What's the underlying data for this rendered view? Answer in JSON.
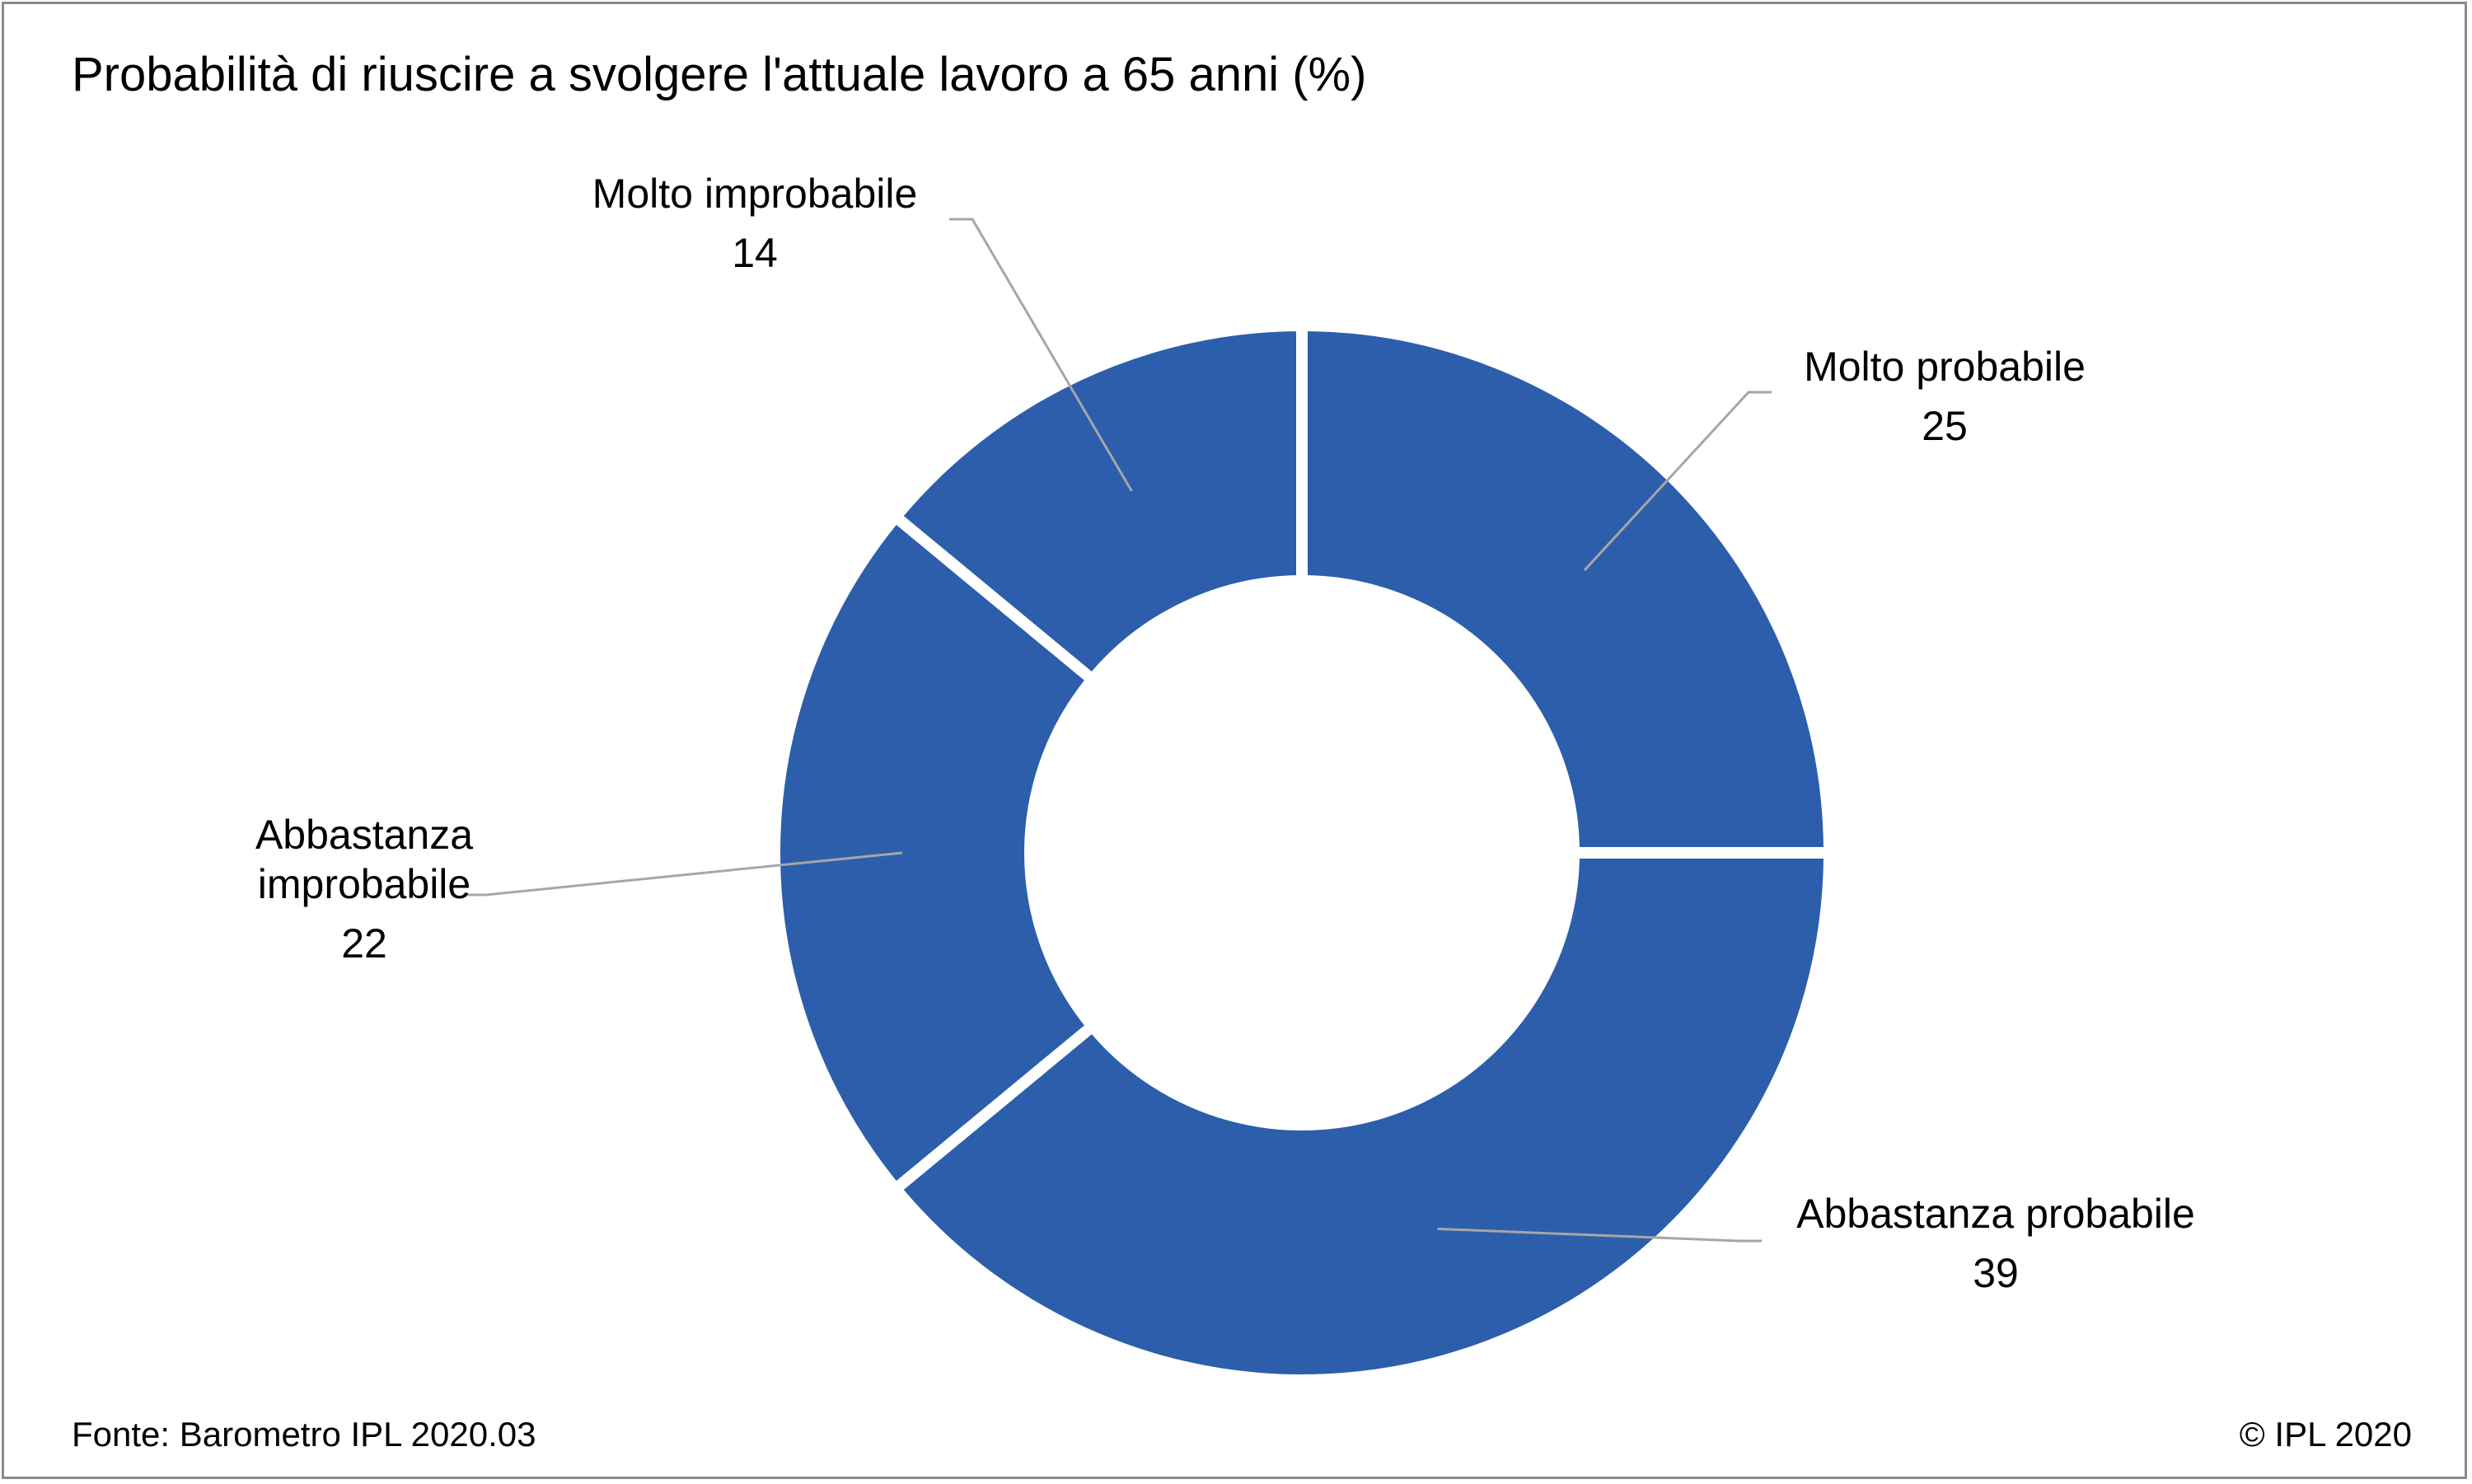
{
  "title": "Probabilità  di riuscire a svolgere l'attuale lavoro a 65 anni (%)",
  "footer": {
    "source": "Fonte: Barometro IPL 2020.03",
    "copyright": "© IPL 2020"
  },
  "colors": {
    "slice": "#2c5eab",
    "leader": "#a6a6a6",
    "border": "#8a8a8a"
  },
  "chart_data": {
    "type": "pie",
    "donut": true,
    "title": "Probabilità  di riuscire a svolgere l'attuale lavoro a 65 anni (%)",
    "slices": [
      {
        "label": "Molto probabile",
        "value": 25
      },
      {
        "label": "Abbastanza probabile",
        "value": 39
      },
      {
        "label": "Abbastanza improbabile",
        "value": 22
      },
      {
        "label": "Molto improbabile",
        "value": 14
      }
    ],
    "labels": [
      {
        "lines": [
          "Molto probabile"
        ],
        "value": "25"
      },
      {
        "lines": [
          "Abbastanza probabile"
        ],
        "value": "39"
      },
      {
        "lines": [
          "Abbastanza",
          "improbabile"
        ],
        "value": "22"
      },
      {
        "lines": [
          "Molto improbabile"
        ],
        "value": "14"
      }
    ]
  }
}
